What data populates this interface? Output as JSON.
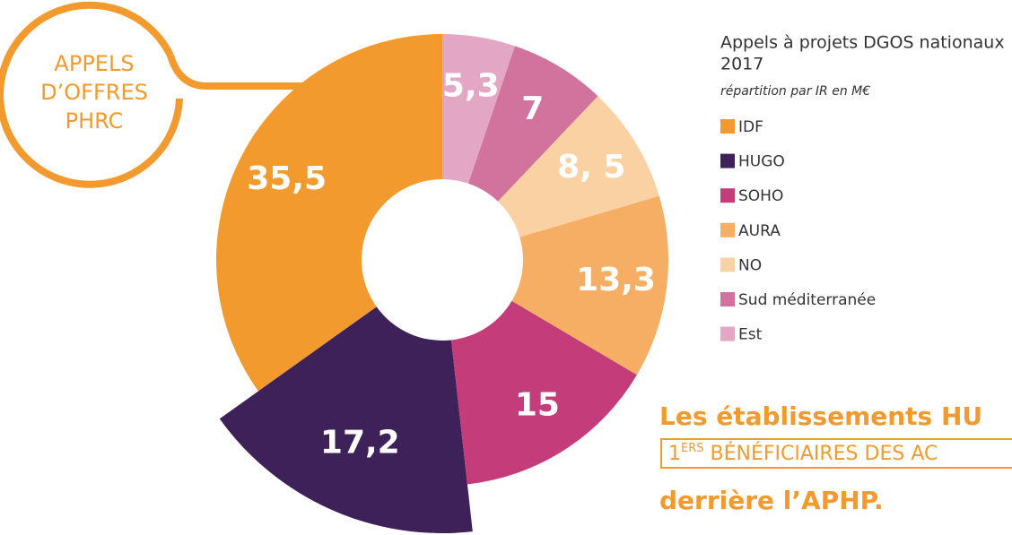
{
  "chart_data": {
    "type": "donut",
    "title": "Appels à projets DGOS nationaux",
    "title_line2": "2017",
    "subtitle": "répartition par IR en M€",
    "callout": [
      "APPELS",
      "D’OFFRES",
      "PHRC"
    ],
    "categories": [
      "IDF",
      "HUGO",
      "SOHO",
      "AURA",
      "NO",
      "Sud méditerranée",
      "Est"
    ],
    "values": [
      35.5,
      17.2,
      15,
      13.3,
      8.5,
      7,
      5.3
    ],
    "value_labels": [
      "35,5",
      "17,2",
      "15",
      "13,3",
      "8, 5",
      "7",
      "5,3"
    ],
    "colors": [
      "#f39a2e",
      "#3e2159",
      "#c43d7a",
      "#f5ae63",
      "#fad1a3",
      "#d2739e",
      "#e3a6c4"
    ],
    "direction": "counterclockwise",
    "exploded": "HUGO",
    "legend": "right"
  },
  "footer": {
    "line1": "Les établissements HU",
    "line2_num": "1",
    "line2_sup": "ERS",
    "line2_rest": " BÉNÉFICIAIRES DES AC",
    "line3": "derrière l’APHP."
  }
}
